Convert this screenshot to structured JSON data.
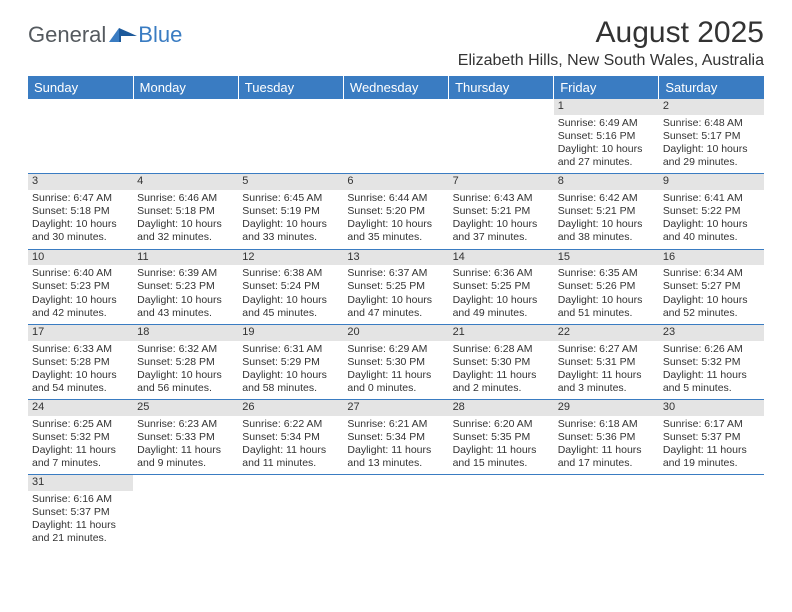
{
  "logo": {
    "main": "General",
    "sub": "Blue"
  },
  "title": "August 2025",
  "location": "Elizabeth Hills, New South Wales, Australia",
  "colors": {
    "header_bg": "#3a7cc2",
    "header_text": "#ffffff",
    "daynum_bg": "#e4e4e4",
    "border": "#3a7cc2",
    "logo_main": "#555a5f",
    "logo_sub": "#3a7cc2"
  },
  "weekdays": [
    "Sunday",
    "Monday",
    "Tuesday",
    "Wednesday",
    "Thursday",
    "Friday",
    "Saturday"
  ],
  "weeks": [
    [
      {
        "empty": true
      },
      {
        "empty": true
      },
      {
        "empty": true
      },
      {
        "empty": true
      },
      {
        "empty": true
      },
      {
        "day": "1",
        "sunrise": "Sunrise: 6:49 AM",
        "sunset": "Sunset: 5:16 PM",
        "daylight": "Daylight: 10 hours and 27 minutes."
      },
      {
        "day": "2",
        "sunrise": "Sunrise: 6:48 AM",
        "sunset": "Sunset: 5:17 PM",
        "daylight": "Daylight: 10 hours and 29 minutes."
      }
    ],
    [
      {
        "day": "3",
        "sunrise": "Sunrise: 6:47 AM",
        "sunset": "Sunset: 5:18 PM",
        "daylight": "Daylight: 10 hours and 30 minutes."
      },
      {
        "day": "4",
        "sunrise": "Sunrise: 6:46 AM",
        "sunset": "Sunset: 5:18 PM",
        "daylight": "Daylight: 10 hours and 32 minutes."
      },
      {
        "day": "5",
        "sunrise": "Sunrise: 6:45 AM",
        "sunset": "Sunset: 5:19 PM",
        "daylight": "Daylight: 10 hours and 33 minutes."
      },
      {
        "day": "6",
        "sunrise": "Sunrise: 6:44 AM",
        "sunset": "Sunset: 5:20 PM",
        "daylight": "Daylight: 10 hours and 35 minutes."
      },
      {
        "day": "7",
        "sunrise": "Sunrise: 6:43 AM",
        "sunset": "Sunset: 5:21 PM",
        "daylight": "Daylight: 10 hours and 37 minutes."
      },
      {
        "day": "8",
        "sunrise": "Sunrise: 6:42 AM",
        "sunset": "Sunset: 5:21 PM",
        "daylight": "Daylight: 10 hours and 38 minutes."
      },
      {
        "day": "9",
        "sunrise": "Sunrise: 6:41 AM",
        "sunset": "Sunset: 5:22 PM",
        "daylight": "Daylight: 10 hours and 40 minutes."
      }
    ],
    [
      {
        "day": "10",
        "sunrise": "Sunrise: 6:40 AM",
        "sunset": "Sunset: 5:23 PM",
        "daylight": "Daylight: 10 hours and 42 minutes."
      },
      {
        "day": "11",
        "sunrise": "Sunrise: 6:39 AM",
        "sunset": "Sunset: 5:23 PM",
        "daylight": "Daylight: 10 hours and 43 minutes."
      },
      {
        "day": "12",
        "sunrise": "Sunrise: 6:38 AM",
        "sunset": "Sunset: 5:24 PM",
        "daylight": "Daylight: 10 hours and 45 minutes."
      },
      {
        "day": "13",
        "sunrise": "Sunrise: 6:37 AM",
        "sunset": "Sunset: 5:25 PM",
        "daylight": "Daylight: 10 hours and 47 minutes."
      },
      {
        "day": "14",
        "sunrise": "Sunrise: 6:36 AM",
        "sunset": "Sunset: 5:25 PM",
        "daylight": "Daylight: 10 hours and 49 minutes."
      },
      {
        "day": "15",
        "sunrise": "Sunrise: 6:35 AM",
        "sunset": "Sunset: 5:26 PM",
        "daylight": "Daylight: 10 hours and 51 minutes."
      },
      {
        "day": "16",
        "sunrise": "Sunrise: 6:34 AM",
        "sunset": "Sunset: 5:27 PM",
        "daylight": "Daylight: 10 hours and 52 minutes."
      }
    ],
    [
      {
        "day": "17",
        "sunrise": "Sunrise: 6:33 AM",
        "sunset": "Sunset: 5:28 PM",
        "daylight": "Daylight: 10 hours and 54 minutes."
      },
      {
        "day": "18",
        "sunrise": "Sunrise: 6:32 AM",
        "sunset": "Sunset: 5:28 PM",
        "daylight": "Daylight: 10 hours and 56 minutes."
      },
      {
        "day": "19",
        "sunrise": "Sunrise: 6:31 AM",
        "sunset": "Sunset: 5:29 PM",
        "daylight": "Daylight: 10 hours and 58 minutes."
      },
      {
        "day": "20",
        "sunrise": "Sunrise: 6:29 AM",
        "sunset": "Sunset: 5:30 PM",
        "daylight": "Daylight: 11 hours and 0 minutes."
      },
      {
        "day": "21",
        "sunrise": "Sunrise: 6:28 AM",
        "sunset": "Sunset: 5:30 PM",
        "daylight": "Daylight: 11 hours and 2 minutes."
      },
      {
        "day": "22",
        "sunrise": "Sunrise: 6:27 AM",
        "sunset": "Sunset: 5:31 PM",
        "daylight": "Daylight: 11 hours and 3 minutes."
      },
      {
        "day": "23",
        "sunrise": "Sunrise: 6:26 AM",
        "sunset": "Sunset: 5:32 PM",
        "daylight": "Daylight: 11 hours and 5 minutes."
      }
    ],
    [
      {
        "day": "24",
        "sunrise": "Sunrise: 6:25 AM",
        "sunset": "Sunset: 5:32 PM",
        "daylight": "Daylight: 11 hours and 7 minutes."
      },
      {
        "day": "25",
        "sunrise": "Sunrise: 6:23 AM",
        "sunset": "Sunset: 5:33 PM",
        "daylight": "Daylight: 11 hours and 9 minutes."
      },
      {
        "day": "26",
        "sunrise": "Sunrise: 6:22 AM",
        "sunset": "Sunset: 5:34 PM",
        "daylight": "Daylight: 11 hours and 11 minutes."
      },
      {
        "day": "27",
        "sunrise": "Sunrise: 6:21 AM",
        "sunset": "Sunset: 5:34 PM",
        "daylight": "Daylight: 11 hours and 13 minutes."
      },
      {
        "day": "28",
        "sunrise": "Sunrise: 6:20 AM",
        "sunset": "Sunset: 5:35 PM",
        "daylight": "Daylight: 11 hours and 15 minutes."
      },
      {
        "day": "29",
        "sunrise": "Sunrise: 6:18 AM",
        "sunset": "Sunset: 5:36 PM",
        "daylight": "Daylight: 11 hours and 17 minutes."
      },
      {
        "day": "30",
        "sunrise": "Sunrise: 6:17 AM",
        "sunset": "Sunset: 5:37 PM",
        "daylight": "Daylight: 11 hours and 19 minutes."
      }
    ],
    [
      {
        "day": "31",
        "sunrise": "Sunrise: 6:16 AM",
        "sunset": "Sunset: 5:37 PM",
        "daylight": "Daylight: 11 hours and 21 minutes."
      },
      {
        "empty": true
      },
      {
        "empty": true
      },
      {
        "empty": true
      },
      {
        "empty": true
      },
      {
        "empty": true
      },
      {
        "empty": true
      }
    ]
  ]
}
